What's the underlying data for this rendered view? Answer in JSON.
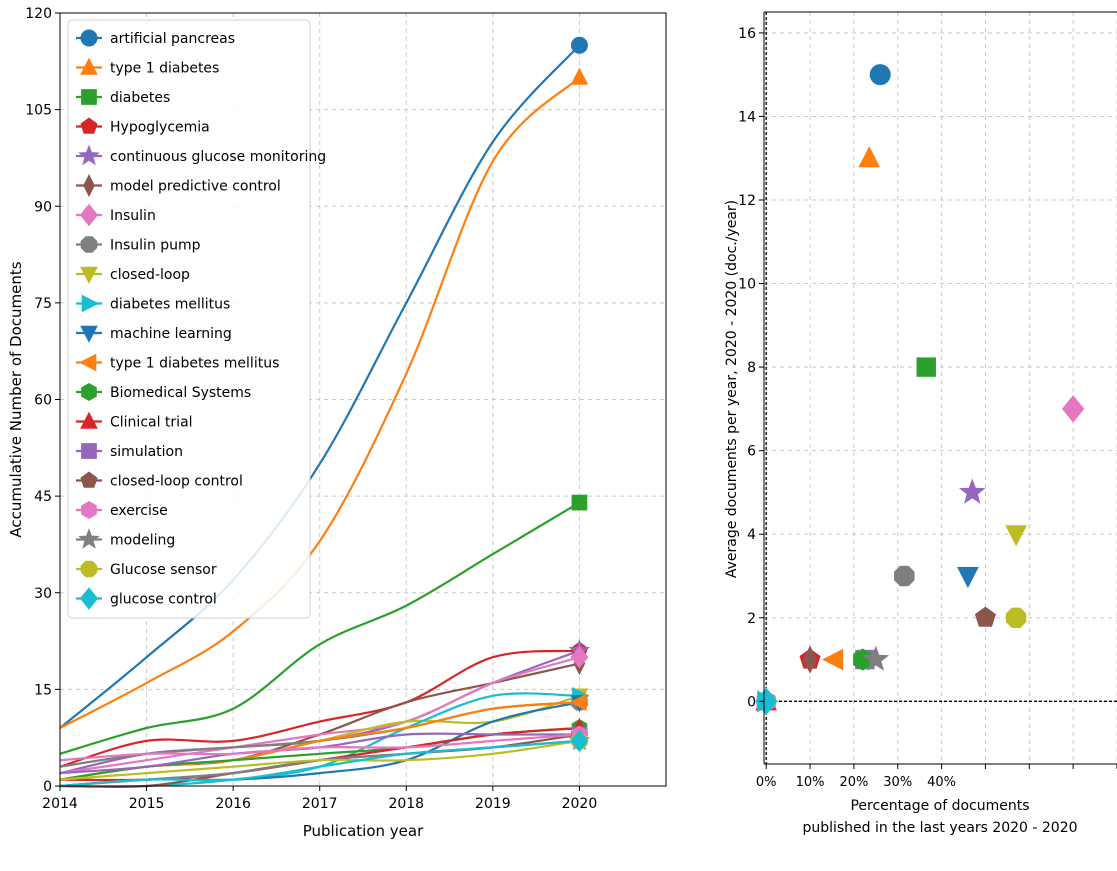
{
  "chart_data": [
    {
      "type": "line",
      "xlabel": "Publication year",
      "ylabel": "Accumulative Number of Documents",
      "xlim": [
        2014,
        2021
      ],
      "ylim": [
        0,
        120
      ],
      "xticks": [
        2014,
        2015,
        2016,
        2017,
        2018,
        2019,
        2020
      ],
      "yticks": [
        0,
        15,
        30,
        45,
        60,
        75,
        90,
        105,
        120
      ],
      "grid": true,
      "legend_position": "top-left",
      "x": [
        2014,
        2015,
        2016,
        2017,
        2018,
        2019,
        2020
      ],
      "series": [
        {
          "name": "artificial pancreas",
          "color": "#1f77b4",
          "marker": "circle",
          "values": [
            9,
            20,
            32,
            50,
            75,
            100,
            115
          ]
        },
        {
          "name": "type 1 diabetes",
          "color": "#ff7f0e",
          "marker": "triangle-up",
          "values": [
            9,
            16,
            24,
            38,
            64,
            97,
            110
          ]
        },
        {
          "name": "diabetes",
          "color": "#2ca02c",
          "marker": "square",
          "values": [
            5,
            9,
            12,
            22,
            28,
            36,
            44
          ]
        },
        {
          "name": "Hypoglycemia",
          "color": "#d62728",
          "marker": "pentagon",
          "values": [
            3,
            7,
            7,
            10,
            13,
            20,
            21
          ]
        },
        {
          "name": "continuous glucose monitoring",
          "color": "#9467bd",
          "marker": "star",
          "values": [
            2,
            5,
            6,
            7,
            10,
            16,
            21
          ]
        },
        {
          "name": "model predictive control",
          "color": "#8c564b",
          "marker": "thin-diamond",
          "values": [
            1,
            3,
            4,
            8,
            13,
            16,
            19
          ]
        },
        {
          "name": "Insulin",
          "color": "#e377c2",
          "marker": "diamond",
          "values": [
            2,
            4,
            6,
            8,
            10,
            16,
            20
          ]
        },
        {
          "name": "Insulin pump",
          "color": "#7f7f7f",
          "marker": "octagon",
          "values": [
            3,
            5,
            6,
            7,
            9,
            12,
            13
          ]
        },
        {
          "name": "closed-loop",
          "color": "#bcbd22",
          "marker": "triangle-down",
          "values": [
            1,
            3,
            4,
            7,
            10,
            10,
            14
          ]
        },
        {
          "name": "diabetes mellitus",
          "color": "#17becf",
          "marker": "triangle-right",
          "values": [
            0,
            0,
            1,
            3,
            9,
            14,
            14
          ]
        },
        {
          "name": "machine learning",
          "color": "#1f77b4",
          "marker": "triangle-down",
          "values": [
            0,
            1,
            1,
            2,
            4,
            10,
            13
          ]
        },
        {
          "name": "type 1 diabetes mellitus",
          "color": "#ff7f0e",
          "marker": "triangle-left",
          "values": [
            1,
            3,
            4,
            7,
            9,
            12,
            13
          ]
        },
        {
          "name": "Biomedical Systems",
          "color": "#2ca02c",
          "marker": "hexagon",
          "values": [
            1,
            3,
            4,
            5,
            6,
            8,
            9
          ]
        },
        {
          "name": "Clinical trial",
          "color": "#d62728",
          "marker": "triangle-up",
          "values": [
            1,
            1,
            2,
            4,
            6,
            8,
            9
          ]
        },
        {
          "name": "simulation",
          "color": "#9467bd",
          "marker": "square",
          "values": [
            2,
            3,
            5,
            6,
            8,
            8,
            8
          ]
        },
        {
          "name": "closed-loop control",
          "color": "#8c564b",
          "marker": "pentagon",
          "values": [
            0,
            0,
            2,
            4,
            5,
            6,
            8
          ]
        },
        {
          "name": "exercise",
          "color": "#e377c2",
          "marker": "hexagon",
          "values": [
            4,
            5,
            5,
            6,
            6,
            7,
            8
          ]
        },
        {
          "name": "modeling",
          "color": "#7f7f7f",
          "marker": "star",
          "values": [
            0,
            1,
            2,
            4,
            5,
            6,
            7
          ]
        },
        {
          "name": "Glucose sensor",
          "color": "#bcbd22",
          "marker": "octagon",
          "values": [
            1,
            2,
            3,
            4,
            4,
            5,
            7
          ]
        },
        {
          "name": "glucose control",
          "color": "#17becf",
          "marker": "diamond",
          "values": [
            0,
            1,
            1,
            3,
            5,
            6,
            7
          ]
        }
      ]
    },
    {
      "type": "scatter",
      "xlabel_line1": "Percentage of documents",
      "xlabel_line2": "published in the last years 2020 - 2020",
      "ylabel": "Average documents per year, 2020 - 2020 (doc./year)",
      "xlim": [
        -0.5,
        80
      ],
      "ylim": [
        -1.5,
        16.5
      ],
      "xticks": [
        0,
        10,
        20,
        30,
        40,
        50,
        60,
        70,
        80
      ],
      "xtick_labels": [
        "0%",
        "10%",
        "20%",
        "30%",
        "40%",
        "",
        "",
        "",
        ""
      ],
      "yticks": [
        0,
        2,
        4,
        6,
        8,
        10,
        12,
        14,
        16
      ],
      "grid": true,
      "zero_line": true,
      "points": [
        {
          "name": "artificial pancreas",
          "x": 26,
          "y": 15,
          "color": "#1f77b4",
          "marker": "circle"
        },
        {
          "name": "type 1 diabetes",
          "x": 23.5,
          "y": 13,
          "color": "#ff7f0e",
          "marker": "triangle-up"
        },
        {
          "name": "diabetes",
          "x": 36.5,
          "y": 8,
          "color": "#2ca02c",
          "marker": "square"
        },
        {
          "name": "Insulin",
          "x": 70,
          "y": 7,
          "color": "#e377c2",
          "marker": "diamond"
        },
        {
          "name": "continuous glucose monitoring",
          "x": 47,
          "y": 5,
          "color": "#9467bd",
          "marker": "star"
        },
        {
          "name": "closed-loop",
          "x": 57,
          "y": 4,
          "color": "#bcbd22",
          "marker": "triangle-down"
        },
        {
          "name": "Insulin pump",
          "x": 31.5,
          "y": 3,
          "color": "#7f7f7f",
          "marker": "octagon"
        },
        {
          "name": "machine learning",
          "x": 46,
          "y": 3,
          "color": "#1f77b4",
          "marker": "triangle-down"
        },
        {
          "name": "model predictive control",
          "x": 50,
          "y": 2,
          "color": "#8c564b",
          "marker": "pentagon"
        },
        {
          "name": "Glucose sensor",
          "x": 57,
          "y": 2,
          "color": "#bcbd22",
          "marker": "octagon"
        },
        {
          "name": "Hypoglycemia",
          "x": 10,
          "y": 1,
          "color": "#d62728",
          "marker": "pentagon"
        },
        {
          "name": "closed-loop control",
          "x": 10,
          "y": 1,
          "color": "#8c564b",
          "marker": "thin-diamond"
        },
        {
          "name": "type 1 diabetes mellitus",
          "x": 15.5,
          "y": 1,
          "color": "#ff7f0e",
          "marker": "triangle-left"
        },
        {
          "name": "simulation",
          "x": 22.5,
          "y": 1,
          "color": "#9467bd",
          "marker": "square"
        },
        {
          "name": "Biomedical Systems",
          "x": 22,
          "y": 1,
          "color": "#2ca02c",
          "marker": "hexagon"
        },
        {
          "name": "modeling",
          "x": 25,
          "y": 1,
          "color": "#7f7f7f",
          "marker": "star"
        },
        {
          "name": "Clinical trial",
          "x": 0,
          "y": 0,
          "color": "#d62728",
          "marker": "triangle-up"
        },
        {
          "name": "exercise",
          "x": 0,
          "y": 0,
          "color": "#e377c2",
          "marker": "hexagon"
        },
        {
          "name": "diabetes mellitus",
          "x": 0,
          "y": 0,
          "color": "#17becf",
          "marker": "triangle-right"
        },
        {
          "name": "glucose control",
          "x": 0,
          "y": 0,
          "color": "#17becf",
          "marker": "diamond"
        }
      ]
    }
  ]
}
